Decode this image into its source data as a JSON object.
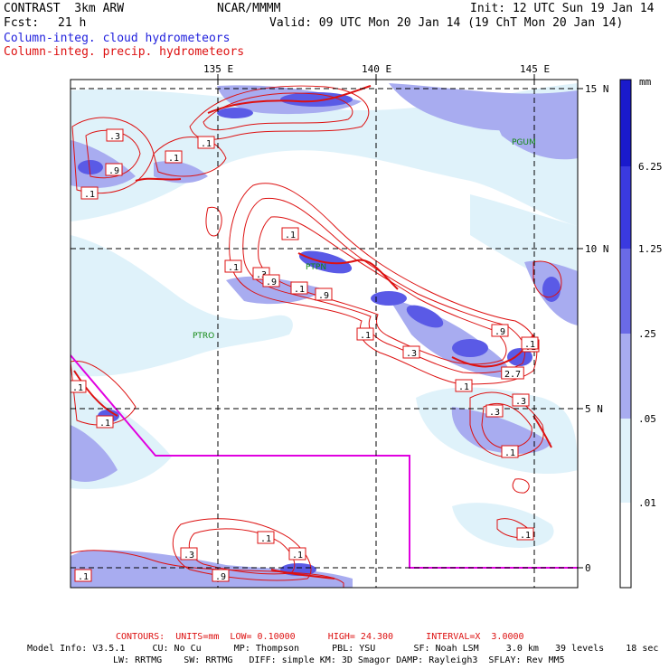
{
  "header": {
    "model": "CONTRAST  3km ARW",
    "center": "NCAR/MMMM",
    "init": "Init: 12 UTC Sun 19 Jan 14",
    "fcst_label": "Fcst:",
    "fcst_value": "21 h",
    "valid": "Valid: 09 UTC Mon 20 Jan 14 (19 ChT Mon 20 Jan 14)",
    "field1": "Column-integ. cloud hydrometeors",
    "field2": "Column-integ. precip. hydrometeors"
  },
  "map": {
    "lon_labels": [
      "135 E",
      "140 E",
      "145 E"
    ],
    "lat_labels": [
      "15 N",
      "10 N",
      "5 N",
      "0"
    ],
    "stations": [
      "PGUM",
      "PTPN",
      "PTRO"
    ],
    "contour_labels": [
      ".3",
      ".9",
      ".1",
      ".1",
      ".1",
      ".1",
      ".3",
      ".1",
      ".9",
      ".1",
      ".3",
      ".9",
      ".1",
      "2.7",
      ".1",
      ".3",
      ".3",
      ".1",
      ".1",
      ".1",
      ".1",
      ".3",
      ".1",
      ".9",
      ".1",
      ".1",
      ".9",
      ".1",
      ".1"
    ]
  },
  "colorbar": {
    "unit": "mm",
    "levels": [
      "6.25",
      "1.25",
      ".25",
      ".05",
      ".01"
    ],
    "colors": [
      "#1a1acc",
      "#3a3ae0",
      "#6a6ae6",
      "#a8acf0",
      "#dff2fa",
      "#ffffff"
    ]
  },
  "footer": {
    "contours": "CONTOURS:  UNITS=mm  LOW= 0.10000      HIGH= 24.300      INTERVAL=X  3.0000",
    "model_info": "Model Info: V3.5.1     CU: No Cu      MP: Thompson      PBL: YSU       SF: Noah LSM     3.0 km   39 levels    18 sec",
    "model_info2": "LW: RRTMG    SW: RRTMG   DIFF: simple KM: 3D Smagor DAMP: Rayleigh3  SFLAY: Rev MM5"
  }
}
